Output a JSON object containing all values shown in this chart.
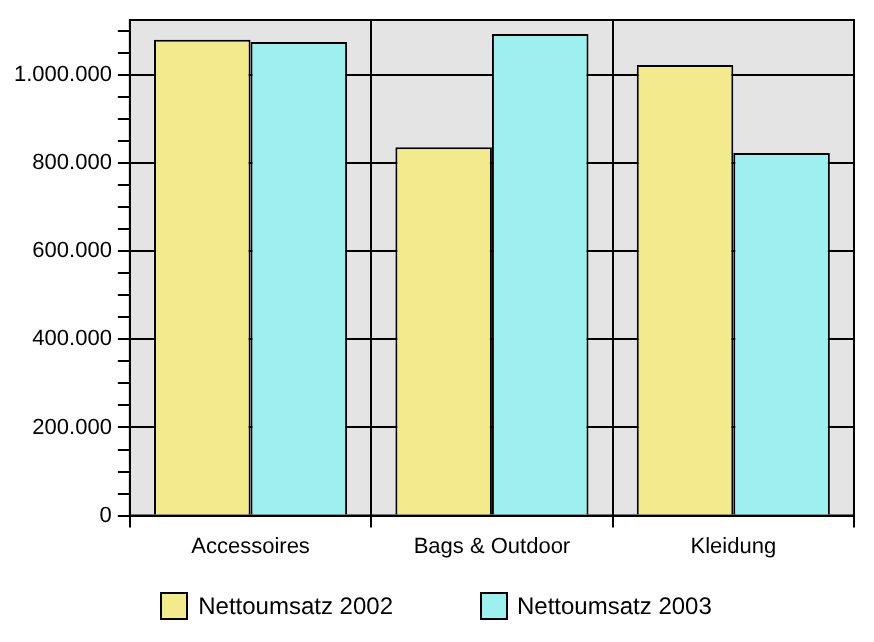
{
  "chart_data": {
    "type": "bar",
    "categories": [
      "Accessoires",
      "Bags & Outdoor",
      "Kleidung"
    ],
    "series": [
      {
        "name": "Nettoumsatz 2002",
        "color": "#f2ea8c",
        "values": [
          1080000,
          836000,
          1023000
        ]
      },
      {
        "name": "Nettoumsatz 2003",
        "color": "#9ef0f0",
        "values": [
          1075000,
          1093000,
          823000
        ]
      }
    ],
    "ylim": [
      0,
      1125000
    ],
    "yticks": [
      0,
      {
        "value": 50000,
        "label": null
      },
      {
        "value": 100000,
        "label": null
      },
      {
        "value": 150000,
        "label": null
      },
      {
        "value": 200000,
        "label": "200.000"
      },
      {
        "value": 250000,
        "label": null
      },
      {
        "value": 300000,
        "label": null
      },
      {
        "value": 350000,
        "label": null
      },
      {
        "value": 400000,
        "label": "400.000"
      },
      {
        "value": 450000,
        "label": null
      },
      {
        "value": 500000,
        "label": null
      },
      {
        "value": 550000,
        "label": null
      },
      {
        "value": 600000,
        "label": "600.000"
      },
      {
        "value": 650000,
        "label": null
      },
      {
        "value": 700000,
        "label": null
      },
      {
        "value": 750000,
        "label": null
      },
      {
        "value": 800000,
        "label": "800.000"
      },
      {
        "value": 850000,
        "label": null
      },
      {
        "value": 900000,
        "label": null
      },
      {
        "value": 950000,
        "label": null
      },
      {
        "value": 1000000,
        "label": "1.000.000"
      },
      {
        "value": 1050000,
        "label": null
      },
      {
        "value": 1100000,
        "label": null
      }
    ],
    "grid": true,
    "legend": "bottom"
  }
}
